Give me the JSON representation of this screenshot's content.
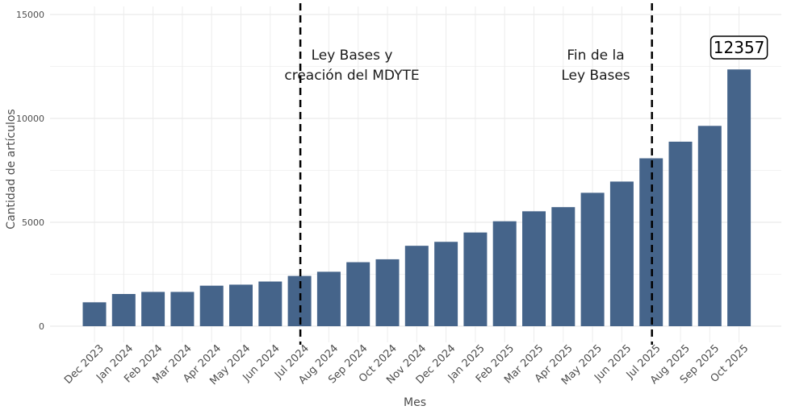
{
  "chart_data": {
    "type": "bar",
    "xlabel": "Mes",
    "ylabel": "Cantidad de artículos",
    "ylim": [
      -600,
      15500
    ],
    "yticks": [
      0,
      5000,
      10000,
      15000
    ],
    "grid": true,
    "bar_color": "#45648a",
    "categories": [
      "Dec 2023",
      "Jan 2024",
      "Feb 2024",
      "Mar 2024",
      "Apr 2024",
      "May 2024",
      "Jun 2024",
      "Jul 2024",
      "Aug 2024",
      "Sep 2024",
      "Oct 2024",
      "Nov 2024",
      "Dec 2024",
      "Jan 2025",
      "Feb 2025",
      "Mar 2025",
      "Apr 2025",
      "May 2025",
      "Jun 2025",
      "Jul 2025",
      "Aug 2025",
      "Sep 2025",
      "Oct 2025"
    ],
    "values": [
      1150,
      1550,
      1650,
      1650,
      1950,
      2000,
      2150,
      2420,
      2620,
      3080,
      3220,
      3870,
      4060,
      4510,
      5050,
      5530,
      5730,
      6420,
      6960,
      8080,
      8880,
      9640,
      12357
    ],
    "annotations": [
      {
        "after_category": "Jul 2024",
        "lines": [
          "Ley Bases y",
          "creación del MDYTE"
        ]
      },
      {
        "after_category": "Jul 2025",
        "lines": [
          "Fin de la",
          "Ley Bases"
        ]
      }
    ],
    "value_label": {
      "category": "Oct 2025",
      "text": "12357"
    }
  }
}
